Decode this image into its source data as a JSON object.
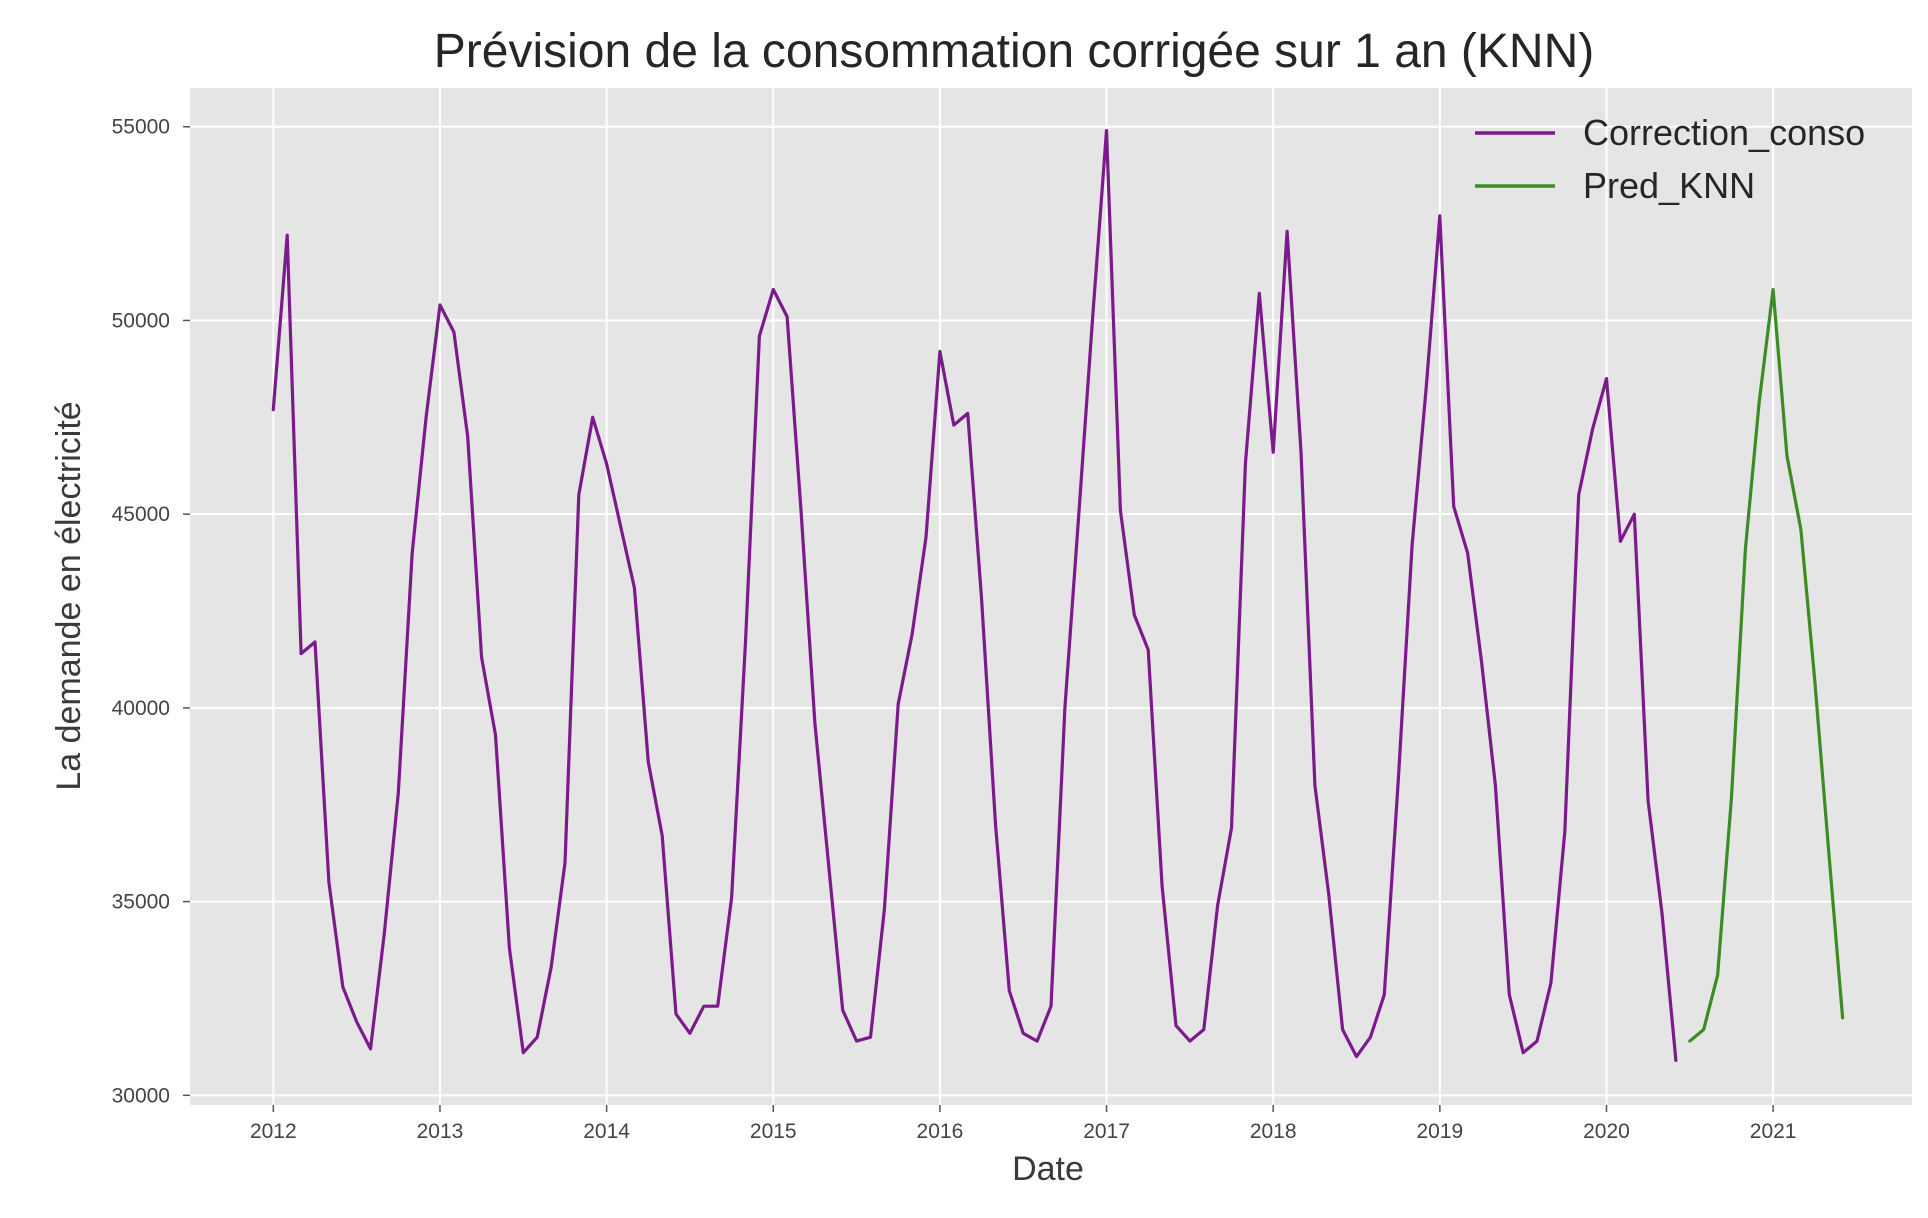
{
  "chart_data": {
    "type": "line",
    "title": "Prévision de la consommation corrigée sur 1 an (KNN)",
    "xlabel": "Date",
    "ylabel": "La demande en électricité",
    "xlim": [
      "2011-07-01",
      "2021-11-01"
    ],
    "ylim": [
      29750,
      56000
    ],
    "x_ticks": [
      "2012",
      "2013",
      "2014",
      "2015",
      "2016",
      "2017",
      "2018",
      "2019",
      "2020",
      "2021"
    ],
    "y_ticks": [
      "30000",
      "35000",
      "40000",
      "45000",
      "50000",
      "55000"
    ],
    "grid": true,
    "background": "#e5e5e5",
    "legend_position": "top-right",
    "series": [
      {
        "name": "Correction_conso",
        "color": "#7b1a8a",
        "points": [
          [
            "2012-01",
            47700
          ],
          [
            "2012-02",
            52200
          ],
          [
            "2012-03",
            41400
          ],
          [
            "2012-04",
            41700
          ],
          [
            "2012-05",
            35500
          ],
          [
            "2012-06",
            32800
          ],
          [
            "2012-07",
            31900
          ],
          [
            "2012-08",
            31200
          ],
          [
            "2012-09",
            34200
          ],
          [
            "2012-10",
            37800
          ],
          [
            "2012-11",
            44000
          ],
          [
            "2012-12",
            47500
          ],
          [
            "2013-01",
            50400
          ],
          [
            "2013-02",
            49700
          ],
          [
            "2013-03",
            47000
          ],
          [
            "2013-04",
            41300
          ],
          [
            "2013-05",
            39300
          ],
          [
            "2013-06",
            33800
          ],
          [
            "2013-07",
            31100
          ],
          [
            "2013-08",
            31500
          ],
          [
            "2013-09",
            33300
          ],
          [
            "2013-10",
            36000
          ],
          [
            "2013-11",
            45500
          ],
          [
            "2013-12",
            47500
          ],
          [
            "2014-01",
            46300
          ],
          [
            "2014-02",
            44700
          ],
          [
            "2014-03",
            43100
          ],
          [
            "2014-04",
            38600
          ],
          [
            "2014-05",
            36700
          ],
          [
            "2014-06",
            32100
          ],
          [
            "2014-07",
            31600
          ],
          [
            "2014-08",
            32300
          ],
          [
            "2014-09",
            32300
          ],
          [
            "2014-10",
            35100
          ],
          [
            "2014-11",
            41700
          ],
          [
            "2014-12",
            49600
          ],
          [
            "2015-01",
            50800
          ],
          [
            "2015-02",
            50100
          ],
          [
            "2015-03",
            45100
          ],
          [
            "2015-04",
            39600
          ],
          [
            "2015-05",
            35900
          ],
          [
            "2015-06",
            32200
          ],
          [
            "2015-07",
            31400
          ],
          [
            "2015-08",
            31500
          ],
          [
            "2015-09",
            34800
          ],
          [
            "2015-10",
            40100
          ],
          [
            "2015-11",
            41900
          ],
          [
            "2015-12",
            44400
          ],
          [
            "2016-01",
            49200
          ],
          [
            "2016-02",
            47300
          ],
          [
            "2016-03",
            47600
          ],
          [
            "2016-04",
            42800
          ],
          [
            "2016-05",
            37000
          ],
          [
            "2016-06",
            32700
          ],
          [
            "2016-07",
            31600
          ],
          [
            "2016-08",
            31400
          ],
          [
            "2016-09",
            32300
          ],
          [
            "2016-10",
            40000
          ],
          [
            "2016-11",
            45000
          ],
          [
            "2016-12",
            50100
          ],
          [
            "2017-01",
            54900
          ],
          [
            "2017-02",
            45100
          ],
          [
            "2017-03",
            42400
          ],
          [
            "2017-04",
            41500
          ],
          [
            "2017-05",
            35400
          ],
          [
            "2017-06",
            31800
          ],
          [
            "2017-07",
            31400
          ],
          [
            "2017-08",
            31700
          ],
          [
            "2017-09",
            34900
          ],
          [
            "2017-10",
            36900
          ],
          [
            "2017-11",
            46300
          ],
          [
            "2017-12",
            50700
          ],
          [
            "2018-01",
            46600
          ],
          [
            "2018-02",
            52300
          ],
          [
            "2018-03",
            46600
          ],
          [
            "2018-04",
            38000
          ],
          [
            "2018-05",
            35200
          ],
          [
            "2018-06",
            31700
          ],
          [
            "2018-07",
            31000
          ],
          [
            "2018-08",
            31500
          ],
          [
            "2018-09",
            32600
          ],
          [
            "2018-10",
            38100
          ],
          [
            "2018-11",
            44200
          ],
          [
            "2018-12",
            48200
          ],
          [
            "2019-01",
            52700
          ],
          [
            "2019-02",
            45200
          ],
          [
            "2019-03",
            44000
          ],
          [
            "2019-04",
            41200
          ],
          [
            "2019-05",
            38000
          ],
          [
            "2019-06",
            32600
          ],
          [
            "2019-07",
            31100
          ],
          [
            "2019-08",
            31400
          ],
          [
            "2019-09",
            32900
          ],
          [
            "2019-10",
            36800
          ],
          [
            "2019-11",
            45500
          ],
          [
            "2019-12",
            47200
          ],
          [
            "2020-01",
            48500
          ],
          [
            "2020-02",
            44300
          ],
          [
            "2020-03",
            45000
          ],
          [
            "2020-04",
            37600
          ],
          [
            "2020-05",
            34700
          ],
          [
            "2020-06",
            30900
          ]
        ]
      },
      {
        "name": "Pred_KNN",
        "color": "#3d8b24",
        "points": [
          [
            "2020-07",
            31400
          ],
          [
            "2020-08",
            31700
          ],
          [
            "2020-09",
            33100
          ],
          [
            "2020-10",
            37700
          ],
          [
            "2020-11",
            44100
          ],
          [
            "2020-12",
            47900
          ],
          [
            "2021-01",
            50800
          ],
          [
            "2021-02",
            46500
          ],
          [
            "2021-03",
            44600
          ],
          [
            "2021-04",
            40700
          ],
          [
            "2021-05",
            36300
          ],
          [
            "2021-06",
            32000
          ]
        ]
      }
    ]
  }
}
